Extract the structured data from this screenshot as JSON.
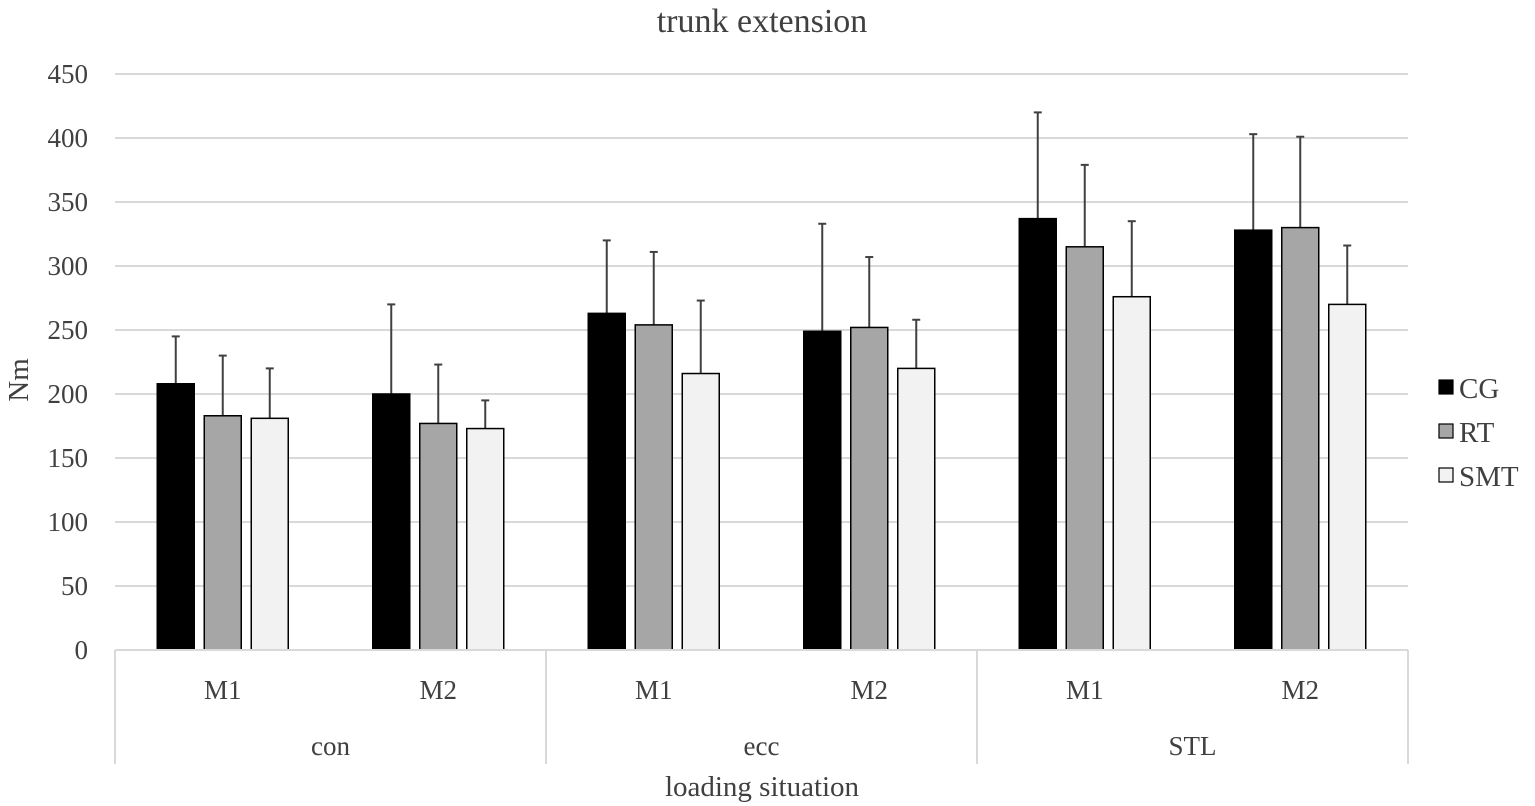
{
  "chart_data": {
    "type": "bar",
    "title": "trunk extension",
    "xlabel": "loading situation",
    "ylabel": "Nm",
    "ylim": [
      0,
      450
    ],
    "yticks": [
      0,
      50,
      100,
      150,
      200,
      250,
      300,
      350,
      400,
      450
    ],
    "grid": true,
    "legend_position": "right",
    "group_labels": [
      "con",
      "ecc",
      "STL"
    ],
    "categories": [
      "con M1",
      "con M2",
      "ecc M1",
      "ecc M2",
      "STL M1",
      "STL M2"
    ],
    "sub_labels": [
      "M1",
      "M2",
      "M1",
      "M2",
      "M1",
      "M2"
    ],
    "series": [
      {
        "name": "CG",
        "color": "#000000",
        "values": [
          208,
          200,
          263,
          249,
          337,
          328
        ],
        "error": [
          37,
          70,
          57,
          84,
          83,
          75
        ]
      },
      {
        "name": "RT",
        "color": "#a6a6a6",
        "values": [
          183,
          177,
          254,
          252,
          315,
          330
        ],
        "error": [
          47,
          46,
          57,
          55,
          64,
          71
        ]
      },
      {
        "name": "SMT",
        "color": "#f2f2f2",
        "values": [
          181,
          173,
          216,
          220,
          276,
          270
        ],
        "error": [
          39,
          22,
          57,
          38,
          59,
          46
        ]
      }
    ]
  }
}
